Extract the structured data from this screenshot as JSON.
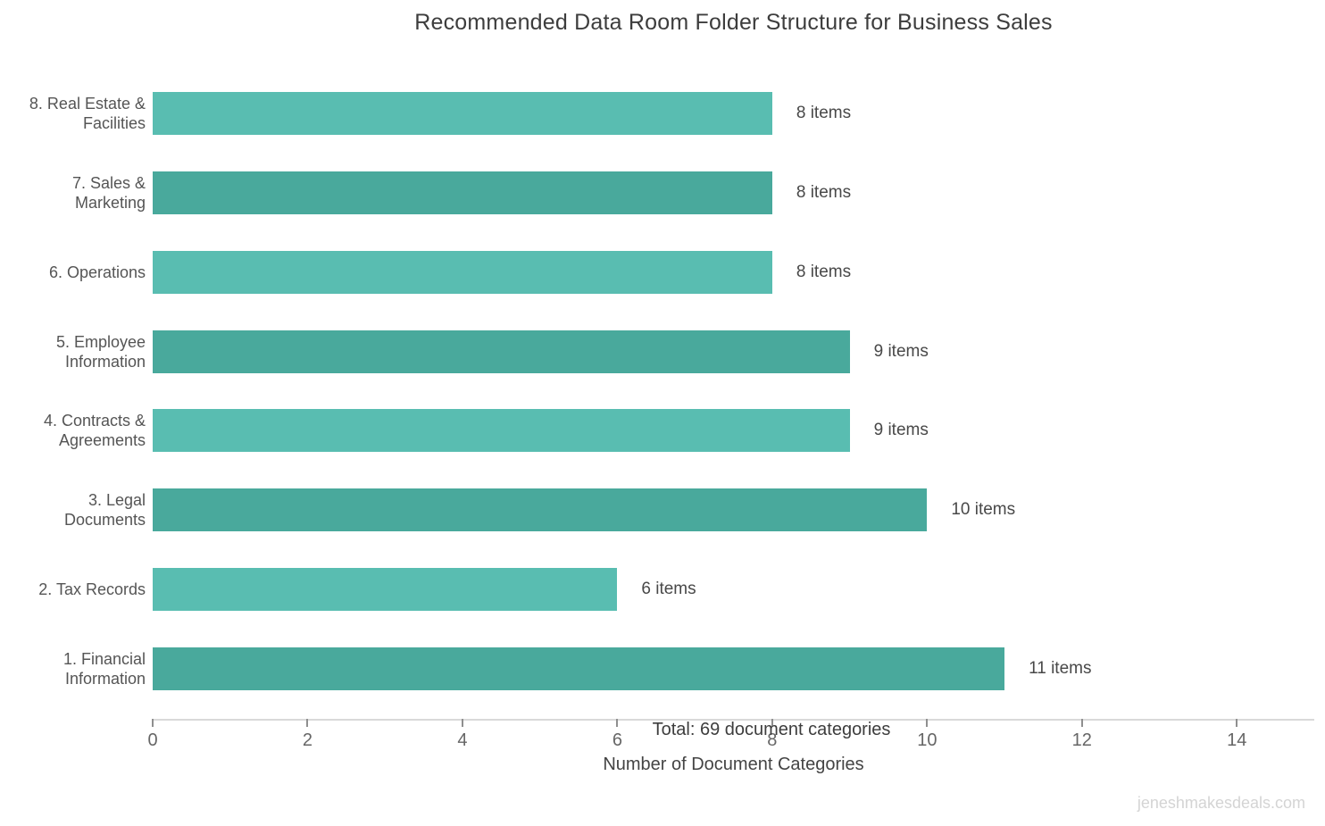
{
  "watermark": "jeneshmakesdeals.com",
  "chart_data": {
    "type": "bar",
    "orientation": "horizontal",
    "title": "Recommended Data Room Folder Structure for Business Sales",
    "xlabel": "Number of Document Categories",
    "ylabel": "",
    "xlim": [
      0,
      15
    ],
    "xticks": [
      0,
      2,
      4,
      6,
      8,
      10,
      12,
      14
    ],
    "grid": false,
    "legend": false,
    "annotation": "Total: 69 document categories",
    "bar_colors": {
      "light_teal": "#59bdb1",
      "dark_teal": "#49a99c"
    },
    "rows": [
      {
        "category": "8. Real Estate & Facilities",
        "value": 8,
        "label": "8 items",
        "color": "#59bdb1"
      },
      {
        "category": "7. Sales & Marketing",
        "value": 8,
        "label": "8 items",
        "color": "#49a99c"
      },
      {
        "category": "6. Operations",
        "value": 8,
        "label": "8 items",
        "color": "#59bdb1"
      },
      {
        "category": "5. Employee Information",
        "value": 9,
        "label": "9 items",
        "color": "#49a99c"
      },
      {
        "category": "4. Contracts & Agreements",
        "value": 9,
        "label": "9 items",
        "color": "#59bdb1"
      },
      {
        "category": "3. Legal Documents",
        "value": 10,
        "label": "10 items",
        "color": "#49a99c"
      },
      {
        "category": "2. Tax Records",
        "value": 6,
        "label": "6 items",
        "color": "#59bdb1"
      },
      {
        "category": "1. Financial Information",
        "value": 11,
        "label": "11 items",
        "color": "#49a99c"
      }
    ]
  }
}
